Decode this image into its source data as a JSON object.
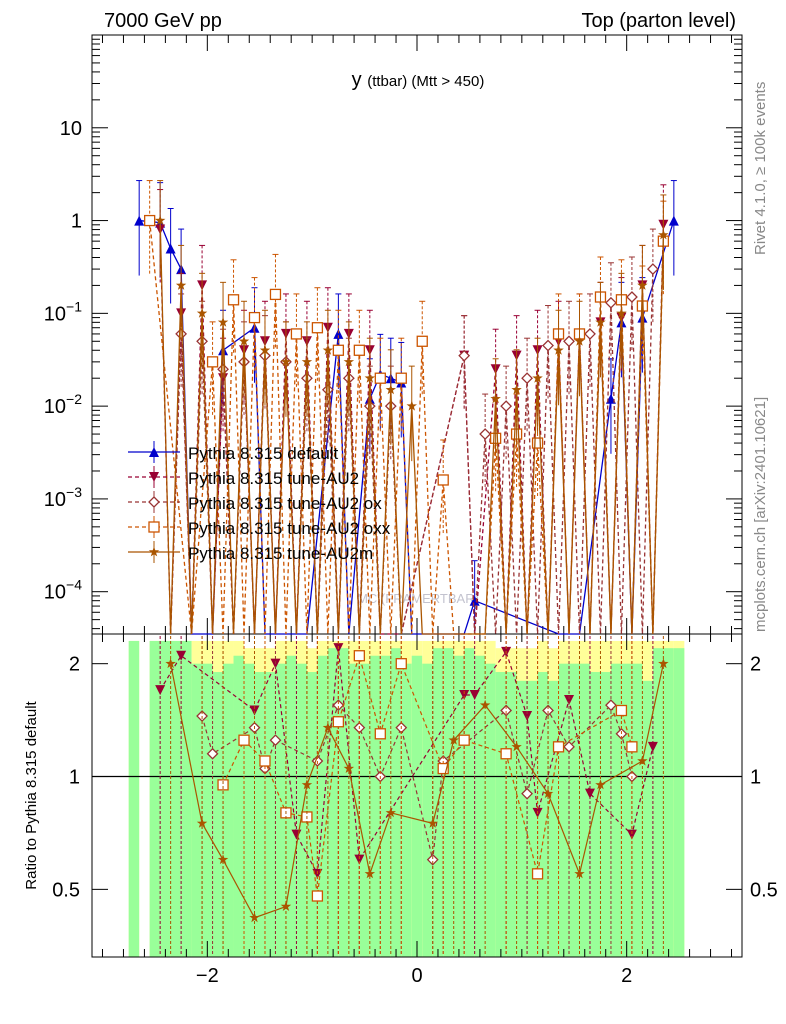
{
  "header": {
    "left": "7000 GeV pp",
    "right": "Top (parton level)"
  },
  "side": {
    "rivet": "Rivet 4.1.0, ≥ 100k events",
    "mcplots": "mcplots.cern.ch [arXiv:2401.10621]"
  },
  "chart_data": [
    {
      "type": "line",
      "title_main": "y",
      "title_sub": "(ttbar) (Mtt > 450)",
      "watermark": "MC (FRAMERTBAR)",
      "yscale": "log",
      "xlim": [
        -3.1,
        3.1
      ],
      "ylim": [
        3.5e-05,
        100
      ],
      "yticks": [
        {
          "v": 0.0001,
          "base": "10",
          "exp": "−4"
        },
        {
          "v": 0.001,
          "base": "10",
          "exp": "−3"
        },
        {
          "v": 0.01,
          "base": "10",
          "exp": "−2"
        },
        {
          "v": 0.1,
          "base": "10",
          "exp": "−1"
        },
        {
          "v": 1,
          "base": "1",
          "exp": ""
        },
        {
          "v": 10,
          "base": "10",
          "exp": ""
        }
      ],
      "legend_placement": "middle-left",
      "series": [
        {
          "name": "Pythia 8.315 default",
          "color": "#0000cc",
          "marker": "triangle-up",
          "dash": "solid",
          "x": [
            -2.65,
            -2.45,
            -2.35,
            -2.25,
            -2.15,
            -1.95,
            -1.85,
            -1.55,
            -1.45,
            -1.05,
            -0.75,
            -0.65,
            -0.45,
            -0.35,
            -0.25,
            -0.15,
            -0.05,
            0.45,
            0.55,
            1.35,
            1.55,
            1.85,
            1.95,
            2.05,
            2.15,
            2.45
          ],
          "y": [
            1.0,
            0.95,
            0.5,
            0.3,
            3e-05,
            3e-05,
            0.04,
            0.07,
            3e-05,
            3e-05,
            0.06,
            3e-05,
            0.012,
            0.022,
            0.02,
            0.018,
            3e-05,
            3e-05,
            8e-05,
            3e-05,
            3e-05,
            0.012,
            0.08,
            3e-05,
            0.09,
            1.0
          ]
        },
        {
          "name": "Pythia 8.315 tune-AU2",
          "color": "#990033",
          "marker": "triangle-down",
          "dash": "dashed",
          "x": [
            -2.45,
            -2.35,
            -2.25,
            -2.15,
            -2.05,
            -1.95,
            -1.85,
            -1.75,
            -1.65,
            -1.55,
            -1.45,
            -1.35,
            -1.25,
            -1.15,
            -1.05,
            -0.95,
            -0.85,
            -0.75,
            -0.65,
            -0.55,
            -0.45,
            -0.35,
            -0.25,
            -0.15,
            0.45,
            0.55,
            0.75,
            0.85,
            0.95,
            1.05,
            1.15,
            1.25,
            1.35,
            1.45,
            1.55,
            1.65,
            1.75,
            1.85,
            1.95,
            2.05,
            2.15,
            2.25,
            2.35
          ],
          "y": [
            0.8,
            3e-05,
            0.1,
            3e-05,
            0.2,
            3e-05,
            0.02,
            3e-05,
            0.04,
            3e-05,
            0.05,
            3e-05,
            0.06,
            3e-05,
            0.05,
            3e-05,
            0.07,
            3e-05,
            0.06,
            3e-05,
            0.04,
            3e-05,
            3e-05,
            3e-05,
            0.035,
            3e-05,
            0.025,
            3e-05,
            0.035,
            3e-05,
            0.04,
            3e-05,
            0.05,
            3e-05,
            0.06,
            3e-05,
            0.08,
            3e-05,
            0.09,
            3e-05,
            0.2,
            3e-05,
            0.9
          ]
        },
        {
          "name": "Pythia 8.315 tune-AU2 ox",
          "color": "#993333",
          "marker": "diamond",
          "dash": "dashed",
          "x": [
            -2.35,
            -2.25,
            -2.15,
            -2.05,
            -1.95,
            -1.85,
            -1.75,
            -1.65,
            -1.55,
            -1.45,
            -1.35,
            -1.25,
            -1.15,
            -1.05,
            -0.95,
            -0.85,
            -0.75,
            -0.65,
            -0.55,
            -0.45,
            -0.35,
            -0.25,
            -0.15,
            0.45,
            0.55,
            0.65,
            0.75,
            0.85,
            0.95,
            1.05,
            1.15,
            1.25,
            1.35,
            1.45,
            1.55,
            1.65,
            1.75,
            1.85,
            1.95,
            2.05,
            2.15,
            2.25
          ],
          "y": [
            3e-05,
            0.06,
            3e-05,
            0.05,
            3e-05,
            0.025,
            3e-05,
            0.03,
            3e-05,
            0.035,
            3e-05,
            0.03,
            3e-05,
            0.02,
            3e-05,
            0.015,
            3e-05,
            0.02,
            3e-05,
            0.01,
            3e-05,
            0.01,
            3e-05,
            0.035,
            3e-05,
            0.005,
            3e-05,
            0.01,
            3e-05,
            0.02,
            3e-05,
            0.045,
            3e-05,
            0.05,
            3e-05,
            0.06,
            3e-05,
            0.13,
            3e-05,
            0.15,
            3e-05,
            0.3
          ]
        },
        {
          "name": "Pythia 8.315 tune-AU2 oxx",
          "color": "#cc5500",
          "marker": "square",
          "dash": "dashed",
          "x": [
            -2.55,
            -2.15,
            -1.95,
            -1.85,
            -1.75,
            -1.65,
            -1.55,
            -1.45,
            -1.35,
            -1.25,
            -1.15,
            -1.05,
            -0.95,
            -0.85,
            -0.75,
            -0.65,
            -0.55,
            -0.45,
            -0.35,
            -0.25,
            -0.15,
            -0.05,
            0.05,
            0.15,
            0.25,
            0.35,
            0.45,
            0.55,
            0.65,
            0.75,
            0.85,
            0.95,
            1.05,
            1.15,
            1.25,
            1.35,
            1.45,
            1.55,
            1.65,
            1.75,
            1.85,
            1.95,
            2.05,
            2.15,
            2.25,
            2.35
          ],
          "y": [
            1.0,
            3e-05,
            0.03,
            3e-05,
            0.14,
            3e-05,
            0.09,
            3e-05,
            0.16,
            3e-05,
            0.06,
            3e-05,
            0.07,
            3e-05,
            0.04,
            3e-05,
            0.04,
            3e-05,
            0.02,
            3e-05,
            0.02,
            3e-05,
            0.05,
            3e-05,
            0.0016,
            3e-05,
            3e-05,
            3e-05,
            3e-05,
            0.0045,
            3e-05,
            0.005,
            3e-05,
            0.004,
            3e-05,
            0.06,
            3e-05,
            0.06,
            3e-05,
            0.15,
            3e-05,
            0.14,
            3e-05,
            0.12,
            3e-05,
            0.6
          ]
        },
        {
          "name": "Pythia 8.315 tune-AU2m",
          "color": "#aa5500",
          "marker": "star",
          "dash": "solid",
          "x": [
            -2.45,
            -2.35,
            -2.25,
            -2.15,
            -2.05,
            -1.95,
            -1.85,
            -1.75,
            -1.65,
            -1.55,
            -1.45,
            -1.35,
            -1.25,
            -1.15,
            -1.05,
            -0.95,
            -0.85,
            -0.75,
            -0.65,
            -0.55,
            -0.45,
            -0.35,
            -0.25,
            -0.15,
            -0.05,
            0.05,
            0.15,
            0.25,
            0.35,
            0.45,
            0.55,
            0.65,
            0.75,
            0.85,
            0.95,
            1.05,
            1.15,
            1.25,
            1.35,
            1.45,
            1.55,
            1.65,
            1.75,
            1.85,
            1.95,
            2.05,
            2.15,
            2.25,
            2.35
          ],
          "y": [
            1.0,
            3e-05,
            0.2,
            3e-05,
            0.1,
            3e-05,
            0.08,
            3e-05,
            0.05,
            3e-05,
            0.04,
            3e-05,
            0.03,
            3e-05,
            0.03,
            3e-05,
            0.04,
            3e-05,
            0.03,
            3e-05,
            0.02,
            3e-05,
            0.015,
            3e-05,
            0.01,
            3e-05,
            3e-05,
            3e-05,
            3e-05,
            3e-05,
            3e-05,
            3e-05,
            0.012,
            3e-05,
            0.015,
            3e-05,
            0.02,
            3e-05,
            0.04,
            3e-05,
            0.05,
            3e-05,
            0.08,
            3e-05,
            0.1,
            3e-05,
            0.2,
            3e-05,
            0.7
          ]
        }
      ]
    },
    {
      "type": "line",
      "ylabel": "Ratio to Pythia 8.315 default",
      "yscale": "log",
      "xlim": [
        -3.1,
        3.1
      ],
      "ylim": [
        0.33,
        2.4
      ],
      "yticks": [
        {
          "v": 0.5,
          "label": "0.5"
        },
        {
          "v": 1,
          "label": "1"
        },
        {
          "v": 2,
          "label": "2"
        }
      ],
      "xticks": [
        {
          "v": -2,
          "label": "−2"
        },
        {
          "v": 0,
          "label": "0"
        },
        {
          "v": 2,
          "label": "2"
        }
      ],
      "reference_line": 1,
      "band_colors": {
        "inner": "#99ff99",
        "outer": "#ffff99"
      },
      "band_bins": [
        -2.75,
        -2.65,
        -2.55,
        -2.45,
        -2.35,
        -2.25,
        -2.15,
        -2.05,
        -1.95,
        -1.85,
        -1.75,
        -1.65,
        -1.55,
        -1.45,
        -1.35,
        -1.25,
        -1.15,
        -1.05,
        -0.95,
        -0.85,
        -0.75,
        -0.65,
        -0.55,
        -0.45,
        -0.35,
        -0.25,
        -0.15,
        -0.05,
        0.05,
        0.15,
        0.25,
        0.35,
        0.45,
        0.55,
        0.65,
        0.75,
        0.85,
        0.95,
        1.05,
        1.15,
        1.25,
        1.35,
        1.45,
        1.55,
        1.65,
        1.75,
        1.85,
        1.95,
        2.05,
        2.15,
        2.25,
        2.35,
        2.45,
        2.55
      ],
      "band_inner": [
        2.3,
        0.0,
        2.3,
        2.3,
        2.3,
        2.3,
        2.0,
        2.0,
        1.9,
        2.0,
        2.1,
        2.0,
        1.9,
        1.9,
        2.0,
        2.1,
        2.0,
        1.9,
        2.1,
        2.2,
        2.2,
        2.0,
        2.0,
        2.1,
        2.1,
        2.2,
        2.0,
        2.1,
        2.0,
        2.2,
        2.2,
        2.1,
        2.2,
        2.1,
        2.0,
        1.9,
        1.9,
        1.8,
        1.8,
        1.9,
        1.8,
        2.0,
        2.0,
        2.0,
        1.9,
        1.9,
        2.0,
        2.0,
        2.0,
        1.8,
        2.2,
        2.2,
        2.2
      ],
      "band_outer": [
        2.3,
        0.0,
        2.3,
        2.3,
        2.3,
        2.3,
        2.3,
        2.3,
        2.3,
        2.3,
        2.3,
        2.2,
        2.2,
        2.2,
        2.3,
        2.3,
        2.3,
        2.2,
        2.3,
        2.3,
        2.3,
        2.3,
        2.3,
        2.3,
        2.3,
        2.3,
        2.3,
        2.3,
        2.3,
        2.3,
        2.3,
        2.3,
        2.3,
        2.3,
        2.3,
        2.2,
        2.2,
        2.2,
        2.2,
        2.3,
        2.2,
        2.3,
        2.3,
        2.3,
        2.3,
        2.3,
        2.3,
        2.3,
        2.3,
        2.3,
        2.3,
        2.3,
        2.3
      ],
      "band_lower": [
        0.33,
        0.0,
        0.33,
        0.33,
        0.33,
        0.33,
        0.33,
        0.33,
        0.33,
        0.33,
        0.33,
        0.33,
        0.33,
        0.33,
        0.33,
        0.33,
        0.33,
        0.33,
        0.33,
        0.33,
        0.33,
        0.33,
        0.33,
        0.33,
        0.33,
        0.33,
        0.33,
        0.33,
        0.33,
        0.33,
        0.33,
        0.33,
        0.33,
        0.33,
        0.33,
        0.33,
        0.33,
        0.33,
        0.33,
        0.33,
        0.33,
        0.33,
        0.33,
        0.33,
        0.33,
        0.33,
        0.33,
        0.33,
        0.33,
        0.33,
        0.33,
        0.33,
        0.33
      ],
      "series": [
        {
          "name": "Pythia 8.315 tune-AU2",
          "color": "#990033",
          "marker": "triangle-down",
          "dash": "dashed",
          "x": [
            -2.45,
            -2.25,
            -1.55,
            -1.35,
            -1.15,
            -0.95,
            -0.75,
            -0.55,
            0.45,
            0.55,
            0.85,
            1.05,
            1.15,
            1.45,
            1.65,
            2.05,
            2.25
          ],
          "y": [
            1.7,
            2.1,
            1.5,
            2.0,
            0.7,
            0.55,
            2.2,
            0.6,
            1.65,
            1.65,
            2.15,
            1.45,
            0.8,
            1.6,
            0.9,
            0.7,
            1.2
          ]
        },
        {
          "name": "Pythia 8.315 tune-AU2 ox",
          "color": "#993333",
          "marker": "diamond",
          "dash": "dashed",
          "x": [
            -2.05,
            -1.95,
            -1.55,
            -1.45,
            -1.35,
            -0.95,
            -0.75,
            -0.55,
            -0.35,
            -0.15,
            0.15,
            0.25,
            0.85,
            1.05,
            1.25,
            1.45,
            1.85,
            1.95,
            2.05
          ],
          "y": [
            1.45,
            1.15,
            1.35,
            1.05,
            1.25,
            1.1,
            1.55,
            1.35,
            1.0,
            1.35,
            0.6,
            1.1,
            1.5,
            0.9,
            1.5,
            1.2,
            1.55,
            1.3,
            1.0
          ]
        },
        {
          "name": "Pythia 8.315 tune-AU2 oxx",
          "color": "#cc5500",
          "marker": "square",
          "dash": "dashed",
          "x": [
            -1.85,
            -1.65,
            -1.45,
            -1.25,
            -1.05,
            -0.95,
            -0.75,
            -0.55,
            -0.35,
            -0.15,
            0.25,
            0.45,
            0.85,
            1.15,
            1.35,
            1.95,
            2.05
          ],
          "y": [
            0.95,
            1.25,
            1.1,
            0.8,
            0.78,
            0.48,
            1.4,
            2.1,
            1.3,
            2.0,
            1.05,
            1.25,
            1.15,
            0.55,
            1.2,
            1.5,
            1.2
          ]
        },
        {
          "name": "Pythia 8.315 tune-AU2m",
          "color": "#aa5500",
          "marker": "star",
          "dash": "solid",
          "x": [
            -2.35,
            -2.05,
            -1.85,
            -1.55,
            -1.25,
            -1.05,
            -0.85,
            -0.65,
            -0.45,
            -0.25,
            0.15,
            0.35,
            0.65,
            0.95,
            1.25,
            1.55,
            1.75,
            2.15,
            2.35
          ],
          "y": [
            2.0,
            0.75,
            0.6,
            0.42,
            0.45,
            0.95,
            1.35,
            1.05,
            0.55,
            0.8,
            0.75,
            1.25,
            1.55,
            1.2,
            0.9,
            0.55,
            0.95,
            1.1,
            2.0
          ]
        }
      ]
    }
  ]
}
